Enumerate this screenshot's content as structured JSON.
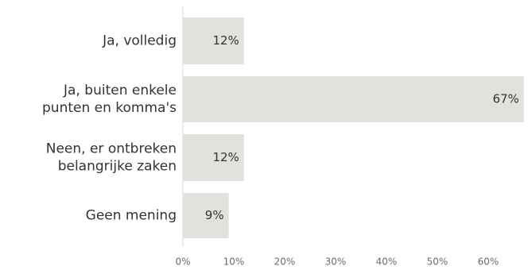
{
  "chart_data": {
    "type": "bar",
    "orientation": "horizontal",
    "categories": [
      [
        "Ja, volledig"
      ],
      [
        "Ja, buiten enkele",
        "punten en komma's"
      ],
      [
        "Neen, er ontbreken",
        "belangrijke zaken"
      ],
      [
        "Geen mening"
      ]
    ],
    "values": [
      12,
      67,
      12,
      9
    ],
    "data_labels": [
      "12%",
      "67%",
      "12%",
      "9%"
    ],
    "xlim": [
      0,
      67
    ],
    "xticks": [
      0,
      10,
      20,
      30,
      40,
      50,
      60
    ],
    "xtick_labels": [
      "0%",
      "10%",
      "20%",
      "30%",
      "40%",
      "50%",
      "60%"
    ],
    "grid": false,
    "legend": "none",
    "bar_color": "#e3e1dd",
    "axis_color": "#d9d7d2"
  }
}
